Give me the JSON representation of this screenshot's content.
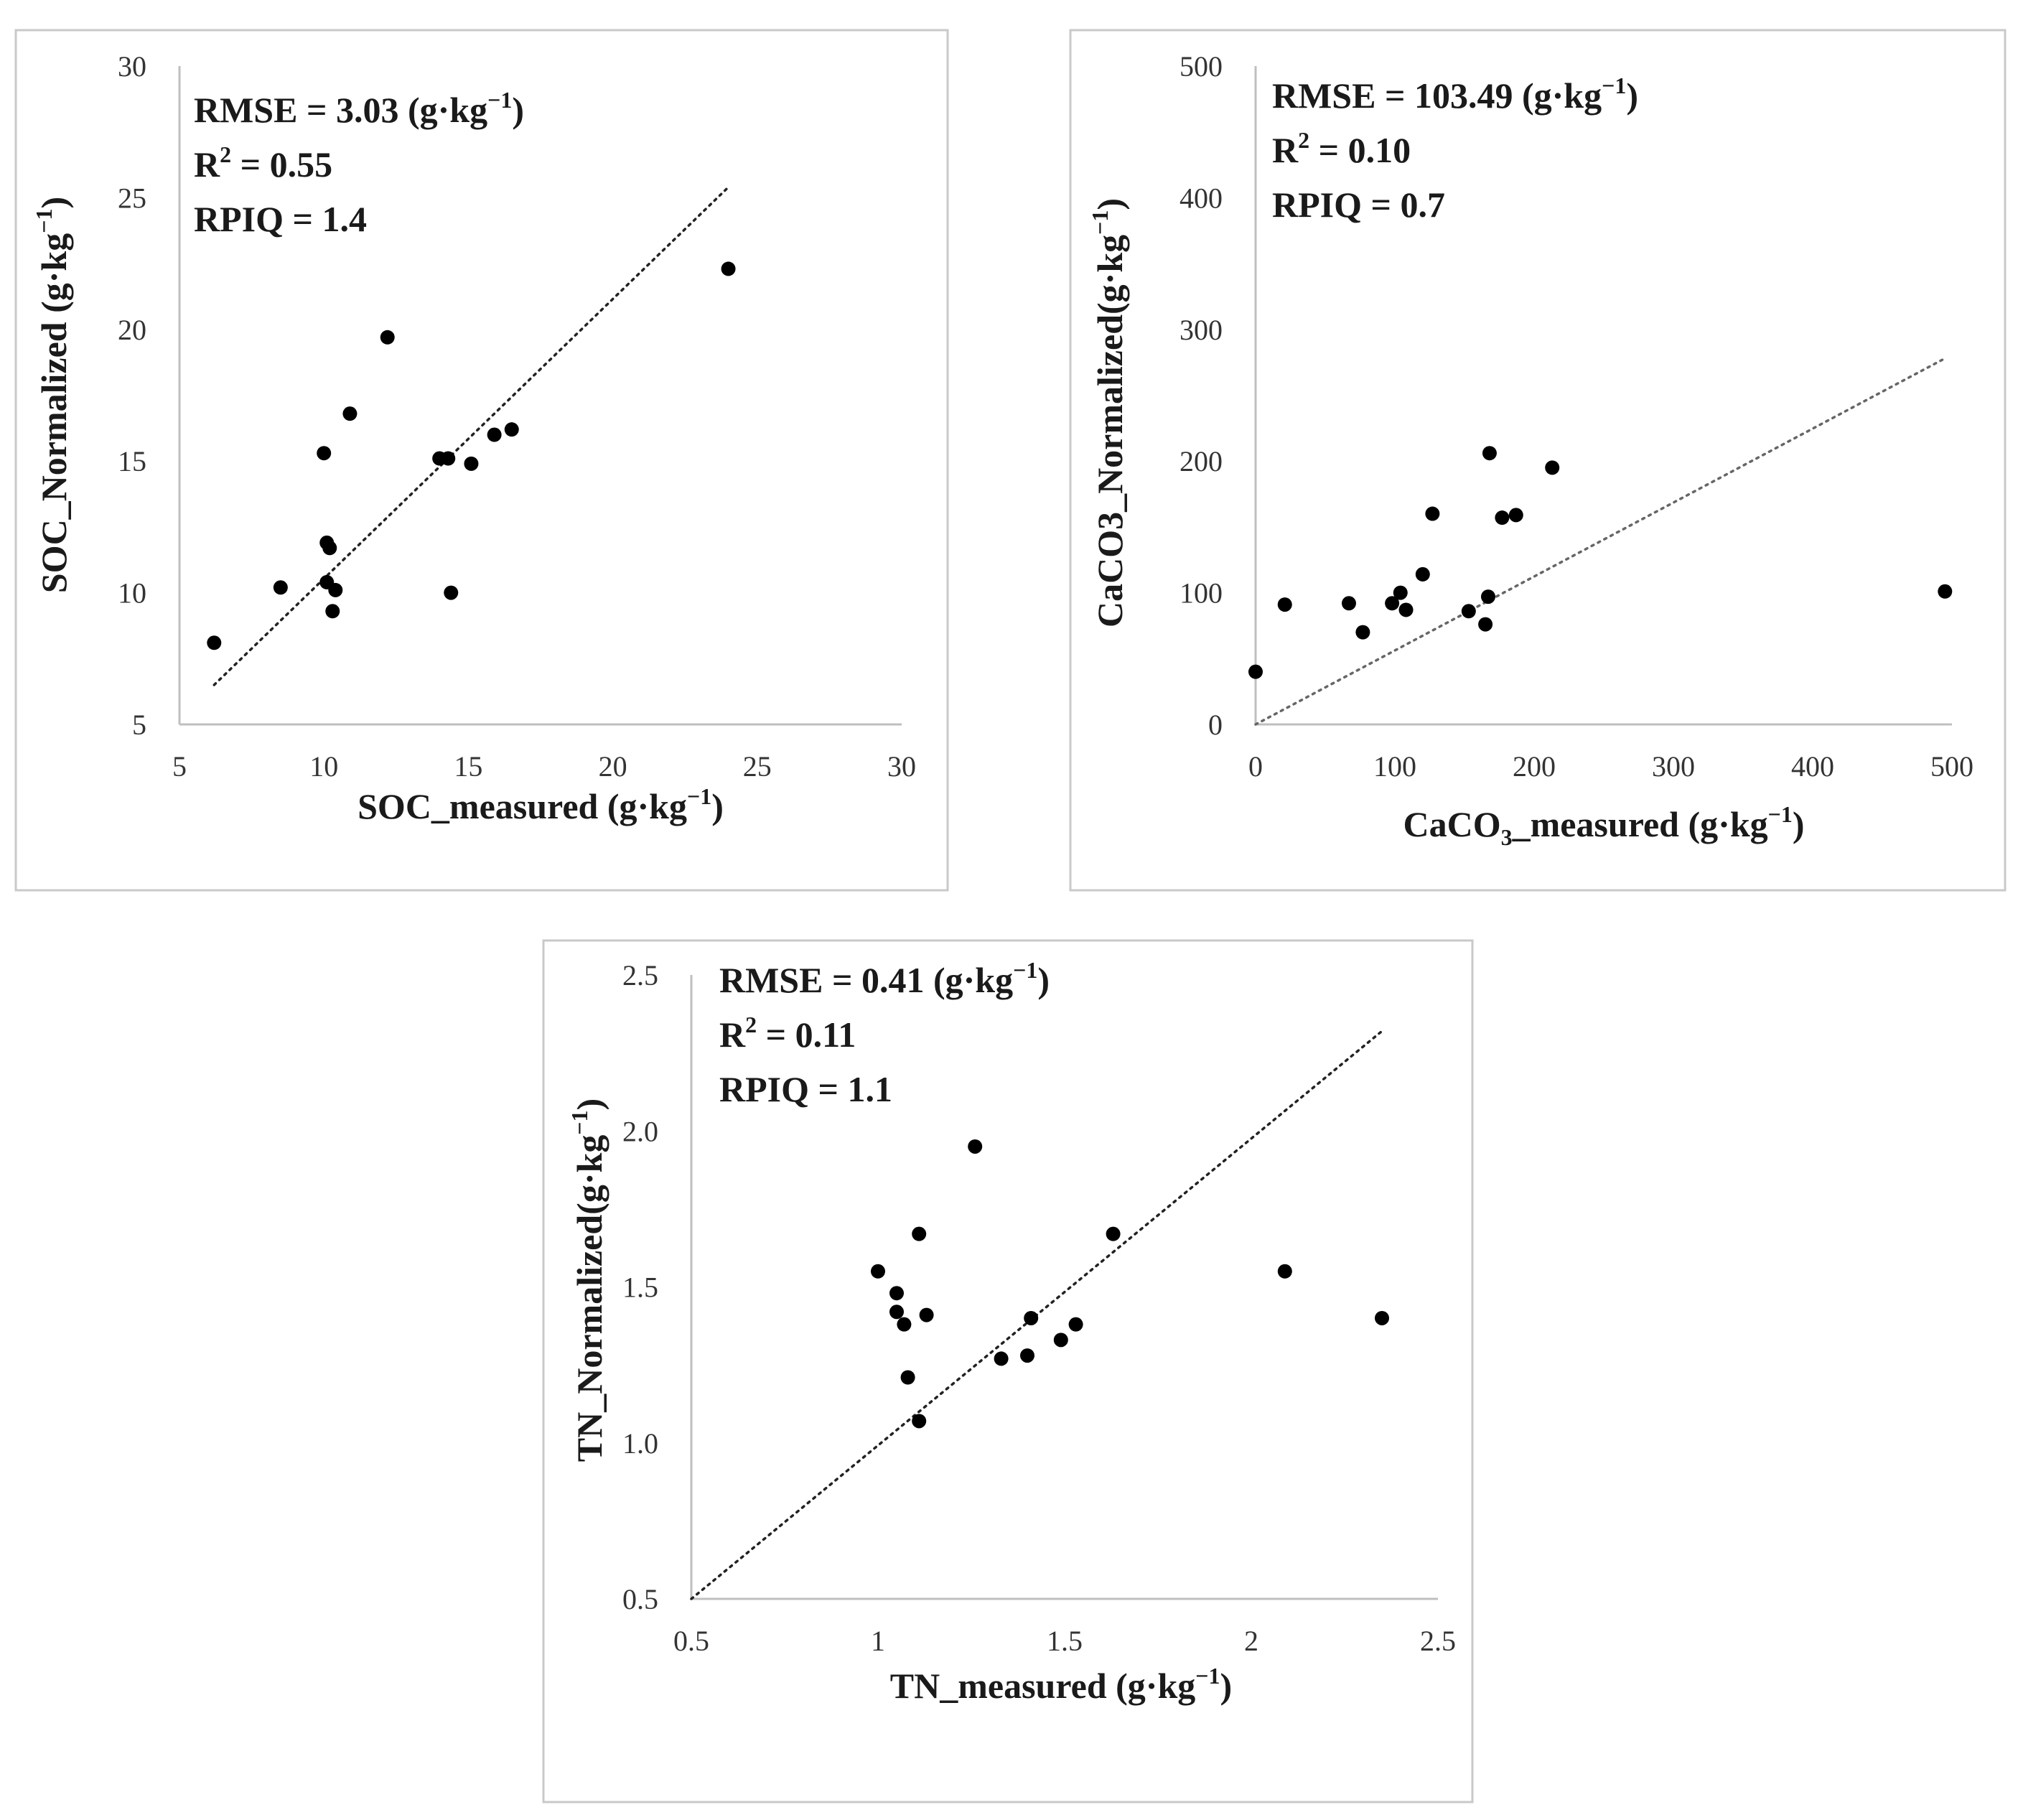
{
  "chart_data": [
    {
      "type": "scatter",
      "id": "soc",
      "xlim": [
        5,
        30
      ],
      "ylim": [
        5,
        30
      ],
      "xticks": [
        "5",
        "10",
        "15",
        "20",
        "25",
        "30"
      ],
      "yticks": [
        "5",
        "10",
        "15",
        "20",
        "25",
        "30"
      ],
      "xlabel": "SOC_measured (g·kg",
      "xlabel_sup": "−1",
      "xlabel_end": ")",
      "ylabel": "SOC_Normalized  (g·kg",
      "ylabel_sup": "−1",
      "ylabel_end": ")",
      "stats": [
        {
          "main": "RMSE = 3.03 (g·kg",
          "sup": "−1",
          "end": ")"
        },
        {
          "main": "R",
          "sup": "2",
          "end": " = 0.55"
        },
        {
          "main": "RPIQ = 1.4",
          "sup": "",
          "end": ""
        }
      ],
      "trendline": [
        [
          6.2,
          6.5
        ],
        [
          24.0,
          25.4
        ]
      ],
      "points": [
        [
          6.2,
          8.1
        ],
        [
          8.5,
          10.2
        ],
        [
          10.0,
          15.3
        ],
        [
          10.1,
          11.9
        ],
        [
          10.2,
          11.7
        ],
        [
          10.1,
          10.4
        ],
        [
          10.4,
          10.1
        ],
        [
          10.3,
          9.3
        ],
        [
          10.9,
          16.8
        ],
        [
          12.2,
          19.7
        ],
        [
          14.0,
          15.1
        ],
        [
          14.3,
          15.1
        ],
        [
          15.1,
          14.9
        ],
        [
          15.9,
          16.0
        ],
        [
          16.5,
          16.2
        ],
        [
          14.4,
          10.0
        ],
        [
          24.0,
          22.3
        ]
      ]
    },
    {
      "type": "scatter",
      "id": "caco3",
      "xlim": [
        0,
        500
      ],
      "ylim": [
        0,
        500
      ],
      "xticks": [
        "0",
        "100",
        "200",
        "300",
        "400",
        "500"
      ],
      "yticks": [
        "0",
        "100",
        "200",
        "300",
        "400",
        "500"
      ],
      "xlabel": "CaCO",
      "xlabel_sub": "3",
      "xlabel_mid": "_measured (g·kg",
      "xlabel_sup": "−1",
      "xlabel_end": ")",
      "ylabel": "CaCO3_Normalized(g·kg",
      "ylabel_sup": "−1",
      "ylabel_end": ")",
      "stats": [
        {
          "main": "RMSE = 103.49 (g·kg",
          "sup": "−1",
          "end": ")"
        },
        {
          "main": "R",
          "sup": "2",
          "end": " = 0.10"
        },
        {
          "main": "RPIQ = 0.7",
          "sup": "",
          "end": ""
        }
      ],
      "trendline": [
        [
          0,
          0
        ],
        [
          495,
          278
        ]
      ],
      "points": [
        [
          0,
          40
        ],
        [
          21,
          91
        ],
        [
          67,
          92
        ],
        [
          77,
          70
        ],
        [
          98,
          92
        ],
        [
          104,
          100
        ],
        [
          108,
          87
        ],
        [
          120,
          114
        ],
        [
          127,
          160
        ],
        [
          153,
          86
        ],
        [
          165,
          76
        ],
        [
          167,
          97
        ],
        [
          168,
          206
        ],
        [
          177,
          157
        ],
        [
          187,
          159
        ],
        [
          213,
          195
        ],
        [
          495,
          101
        ]
      ]
    },
    {
      "type": "scatter",
      "id": "tn",
      "xlim": [
        0.5,
        2.5
      ],
      "ylim": [
        0.5,
        2.5
      ],
      "xticks": [
        "0.5",
        "1",
        "1.5",
        "2",
        "2.5"
      ],
      "yticks": [
        "0.5",
        "1.0",
        "1.5",
        "2.0",
        "2.5"
      ],
      "xlabel": "TN_measured (g·kg",
      "xlabel_sup": "−1",
      "xlabel_end": ")",
      "ylabel": "TN_Normalized(g·kg",
      "ylabel_sup": "−1",
      "ylabel_end": ")",
      "stats": [
        {
          "main": "RMSE = 0.41 (g·kg",
          "sup": "−1",
          "end": ")"
        },
        {
          "main": "R",
          "sup": "2",
          "end": " = 0.11"
        },
        {
          "main": "RPIQ = 1.1",
          "sup": "",
          "end": ""
        }
      ],
      "trendline": [
        [
          0.5,
          0.5
        ],
        [
          2.35,
          2.32
        ]
      ],
      "points": [
        [
          1.0,
          1.55
        ],
        [
          1.05,
          1.48
        ],
        [
          1.05,
          1.42
        ],
        [
          1.07,
          1.38
        ],
        [
          1.08,
          1.21
        ],
        [
          1.11,
          1.07
        ],
        [
          1.11,
          1.67
        ],
        [
          1.13,
          1.41
        ],
        [
          1.26,
          1.95
        ],
        [
          1.33,
          1.27
        ],
        [
          1.4,
          1.28
        ],
        [
          1.41,
          1.4
        ],
        [
          1.49,
          1.33
        ],
        [
          1.53,
          1.38
        ],
        [
          1.63,
          1.67
        ],
        [
          2.09,
          1.55
        ],
        [
          2.35,
          1.4
        ]
      ]
    }
  ]
}
